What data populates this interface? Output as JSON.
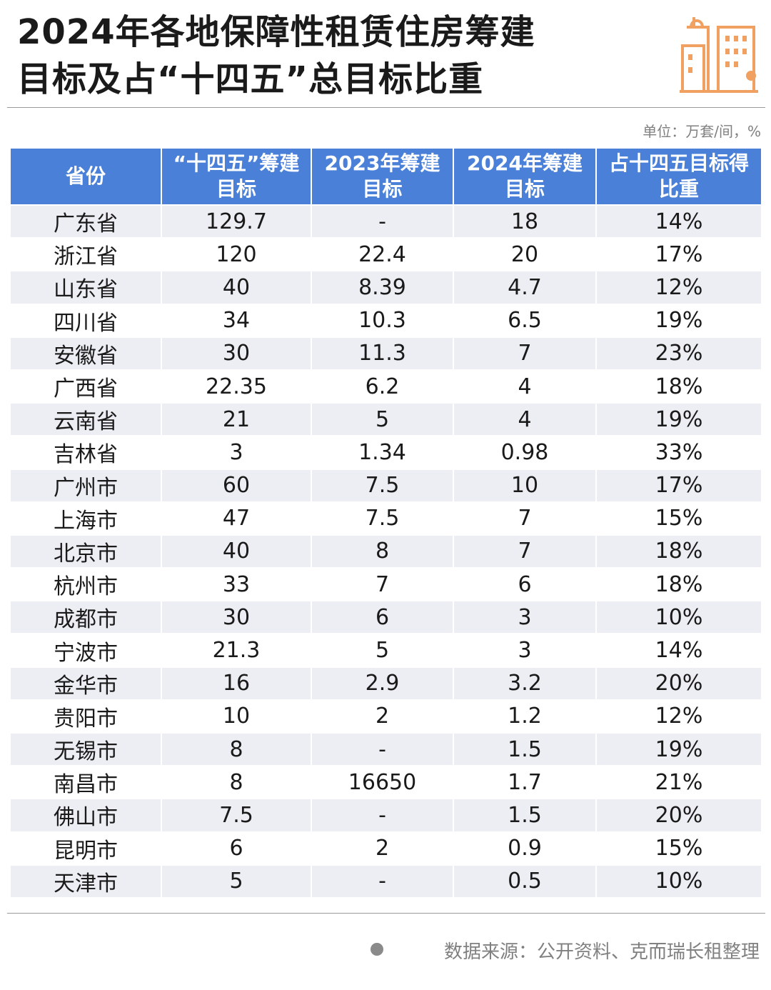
{
  "header": {
    "title": [
      "2024年各地保障性租赁住房筹建",
      "目标及占“十四五”总目标比重"
    ],
    "unit": "单位：万套/间，%"
  },
  "table": {
    "columns": [
      [
        "省份"
      ],
      [
        "“十四五”筹建",
        "目标"
      ],
      [
        "2023年筹建",
        "目标"
      ],
      [
        "2024年筹建",
        "目标"
      ],
      [
        "占十四五目标得",
        "比重"
      ]
    ],
    "rows": [
      [
        "广东省",
        "129.7",
        "-",
        "18",
        "14%"
      ],
      [
        "浙江省",
        "120",
        "22.4",
        "20",
        "17%"
      ],
      [
        "山东省",
        "40",
        "8.39",
        "4.7",
        "12%"
      ],
      [
        "四川省",
        "34",
        "10.3",
        "6.5",
        "19%"
      ],
      [
        "安徽省",
        "30",
        "11.3",
        "7",
        "23%"
      ],
      [
        "广西省",
        "22.35",
        "6.2",
        "4",
        "18%"
      ],
      [
        "云南省",
        "21",
        "5",
        "4",
        "19%"
      ],
      [
        "吉林省",
        "3",
        "1.34",
        "0.98",
        "33%"
      ],
      [
        "广州市",
        "60",
        "7.5",
        "10",
        "17%"
      ],
      [
        "上海市",
        "47",
        "7.5",
        "7",
        "15%"
      ],
      [
        "北京市",
        "40",
        "8",
        "7",
        "18%"
      ],
      [
        "杭州市",
        "33",
        "7",
        "6",
        "18%"
      ],
      [
        "成都市",
        "30",
        "6",
        "3",
        "10%"
      ],
      [
        "宁波市",
        "21.3",
        "5",
        "3",
        "14%"
      ],
      [
        "金华市",
        "16",
        "2.9",
        "3.2",
        "20%"
      ],
      [
        "贵阳市",
        "10",
        "2",
        "1.2",
        "12%"
      ],
      [
        "无锡市",
        "8",
        "-",
        "1.5",
        "19%"
      ],
      [
        "南昌市",
        "8",
        "16650",
        "1.7",
        "21%"
      ],
      [
        "佛山市",
        "7.5",
        "-",
        "1.5",
        "20%"
      ],
      [
        "昆明市",
        "6",
        "2",
        "0.9",
        "15%"
      ],
      [
        "天津市",
        "5",
        "-",
        "0.5",
        "10%"
      ]
    ]
  },
  "footer": {
    "source": "数据来源：公开资料、克而瑞长租整理"
  }
}
